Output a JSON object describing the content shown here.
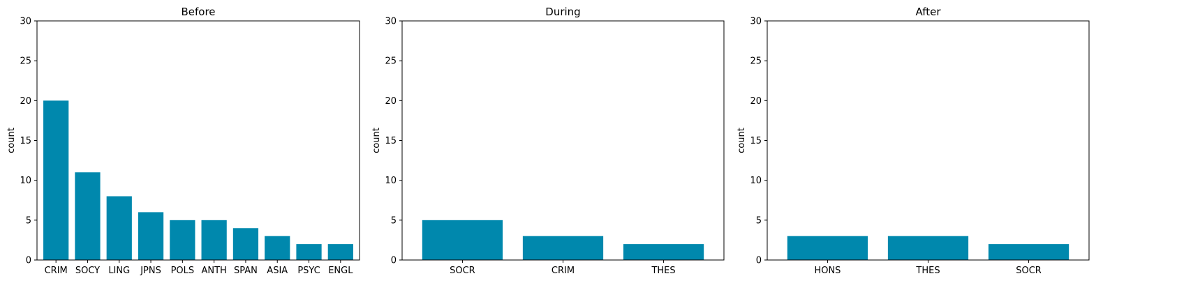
{
  "chart_data": [
    {
      "type": "bar",
      "title": "Before",
      "ylabel": "count",
      "ylim": [
        0,
        30
      ],
      "yticks": [
        0,
        5,
        10,
        15,
        20,
        25,
        30
      ],
      "categories": [
        "CRIM",
        "SOCY",
        "LING",
        "JPNS",
        "POLS",
        "ANTH",
        "SPAN",
        "ASIA",
        "PSYC",
        "ENGL"
      ],
      "values": [
        20,
        11,
        8,
        6,
        5,
        5,
        4,
        3,
        2,
        2
      ],
      "bar_color": "#0088ad"
    },
    {
      "type": "bar",
      "title": "During",
      "ylabel": "count",
      "ylim": [
        0,
        30
      ],
      "yticks": [
        0,
        5,
        10,
        15,
        20,
        25,
        30
      ],
      "categories": [
        "SOCR",
        "CRIM",
        "THES"
      ],
      "values": [
        5,
        3,
        2
      ],
      "bar_color": "#0088ad"
    },
    {
      "type": "bar",
      "title": "After",
      "ylabel": "count",
      "ylim": [
        0,
        30
      ],
      "yticks": [
        0,
        5,
        10,
        15,
        20,
        25,
        30
      ],
      "categories": [
        "HONS",
        "THES",
        "SOCR"
      ],
      "values": [
        3,
        3,
        2
      ],
      "bar_color": "#0088ad"
    }
  ]
}
